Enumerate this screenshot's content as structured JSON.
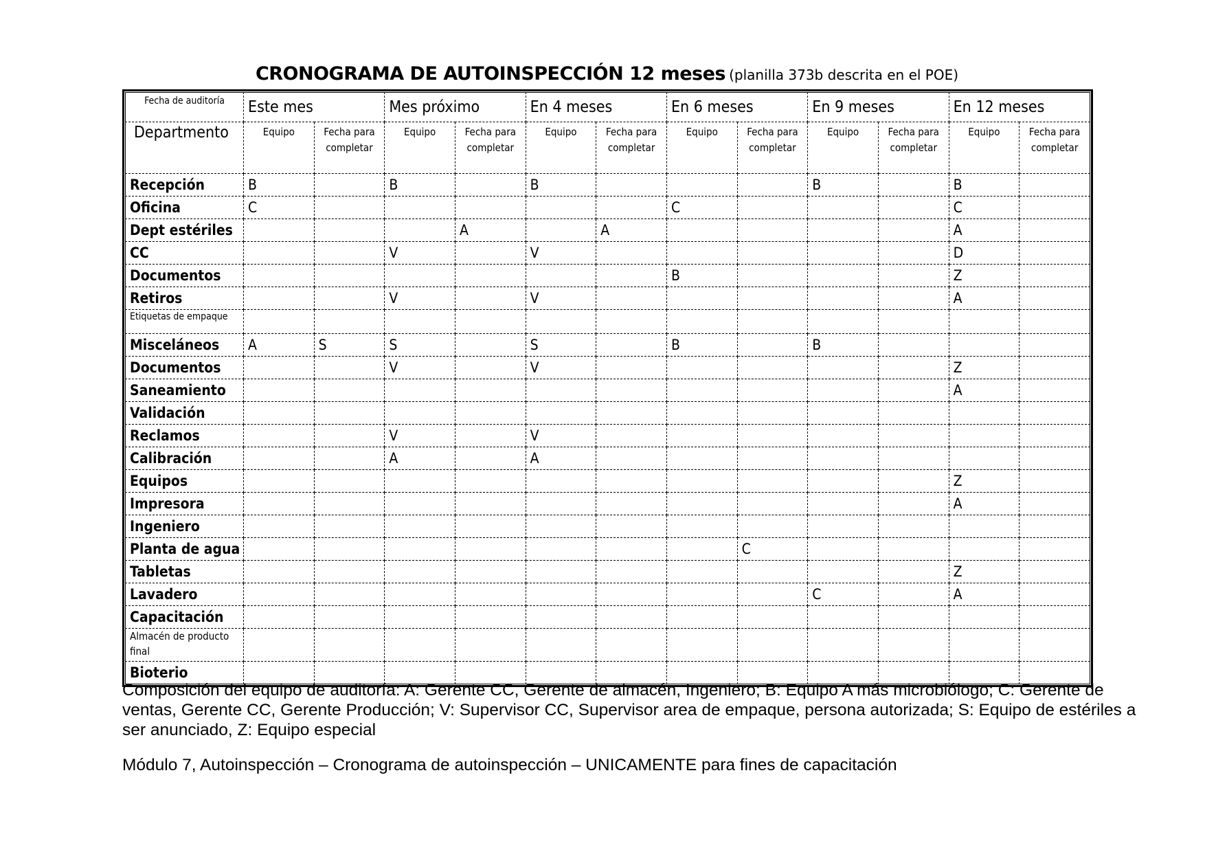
{
  "title": {
    "main": "CRONOGRAMA DE AUTOINSPECCIÓN 12 meses",
    "sub": "(planilla 373b descrita en el POE)"
  },
  "table": {
    "corner_label": "Fecha de auditoría",
    "dept_label": "Departmento",
    "periods": [
      "Este mes",
      "Mes próximo",
      "En 4 meses",
      "En 6 meses",
      "En 9 meses",
      "En 12 meses"
    ],
    "subheaders": [
      "Equipo",
      "Fecha para completar"
    ],
    "rows": [
      {
        "name": "Recepción",
        "cells": [
          "B",
          "",
          "B",
          "",
          "B",
          "",
          "",
          "",
          "B",
          "",
          "B",
          ""
        ]
      },
      {
        "name": "Oficina",
        "cells": [
          "C",
          "",
          "",
          "",
          "",
          "",
          "C",
          "",
          "",
          "",
          "C",
          ""
        ]
      },
      {
        "name": "Dept estériles",
        "cells": [
          "",
          "",
          "",
          "A",
          "",
          "A",
          "",
          "",
          "",
          "",
          "A",
          ""
        ]
      },
      {
        "name": "CC",
        "cells": [
          "",
          "",
          "V",
          "",
          "V",
          "",
          "",
          "",
          "",
          "",
          "D",
          ""
        ]
      },
      {
        "name": "Documentos",
        "cells": [
          "",
          "",
          "",
          "",
          "",
          "",
          "B",
          "",
          "",
          "",
          "Z",
          ""
        ]
      },
      {
        "name": "Retiros",
        "cells": [
          "",
          "",
          "V",
          "",
          "V",
          "",
          "",
          "",
          "",
          "",
          "A",
          ""
        ]
      },
      {
        "name": "Etiquetas de empaque",
        "style": "tiny",
        "cells": [
          "",
          "",
          "",
          "",
          "",
          "",
          "",
          "",
          "",
          "",
          "",
          ""
        ]
      },
      {
        "name": "Misceláneos",
        "cells": [
          "A",
          "S",
          "S",
          "",
          "S",
          "",
          "B",
          "",
          "B",
          "",
          "",
          ""
        ]
      },
      {
        "name": "Documentos",
        "cells": [
          "",
          "",
          "V",
          "",
          "V",
          "",
          "",
          "",
          "",
          "",
          "Z",
          ""
        ]
      },
      {
        "name": "Saneamiento",
        "cells": [
          "",
          "",
          "",
          "",
          "",
          "",
          "",
          "",
          "",
          "",
          "A",
          ""
        ]
      },
      {
        "name": "Validación",
        "cells": [
          "",
          "",
          "",
          "",
          "",
          "",
          "",
          "",
          "",
          "",
          "",
          ""
        ]
      },
      {
        "name": "Reclamos",
        "cells": [
          "",
          "",
          "V",
          "",
          "V",
          "",
          "",
          "",
          "",
          "",
          "",
          ""
        ]
      },
      {
        "name": "Calibración",
        "cells": [
          "",
          "",
          "A",
          "",
          "A",
          "",
          "",
          "",
          "",
          "",
          "",
          ""
        ]
      },
      {
        "name": "Equipos",
        "cells": [
          "",
          "",
          "",
          "",
          "",
          "",
          "",
          "",
          "",
          "",
          "Z",
          ""
        ]
      },
      {
        "name": "Impresora",
        "cells": [
          "",
          "",
          "",
          "",
          "",
          "",
          "",
          "",
          "",
          "",
          "A",
          ""
        ]
      },
      {
        "name": "Ingeniero",
        "cells": [
          "",
          "",
          "",
          "",
          "",
          "",
          "",
          "",
          "",
          "",
          "",
          ""
        ]
      },
      {
        "name": "Planta de agua",
        "cells": [
          "",
          "",
          "",
          "",
          "",
          "",
          "",
          "C",
          "",
          "",
          "",
          ""
        ]
      },
      {
        "name": "Tabletas",
        "cells": [
          "",
          "",
          "",
          "",
          "",
          "",
          "",
          "",
          "",
          "",
          "Z",
          ""
        ]
      },
      {
        "name": "Lavadero",
        "cells": [
          "",
          "",
          "",
          "",
          "",
          "",
          "",
          "",
          "C",
          "",
          "A",
          ""
        ]
      },
      {
        "name": "Capacitación",
        "cells": [
          "",
          "",
          "",
          "",
          "",
          "",
          "",
          "",
          "",
          "",
          "",
          ""
        ]
      },
      {
        "name": "Almacén de producto final",
        "style": "wrap",
        "cells": [
          "",
          "",
          "",
          "",
          "",
          "",
          "",
          "",
          "",
          "",
          "",
          ""
        ]
      },
      {
        "name": "Bioterio",
        "cells": [
          "",
          "",
          "",
          "",
          "",
          "",
          "",
          "",
          "",
          "",
          "",
          ""
        ]
      }
    ]
  },
  "legend": "Composición del equipo de auditoría: A: Gerente CC, Gerente de almacén, Ingeniero; B: Equipo A más microbiólogo; C: Gerente de ventas, Gerente CC, Gerente Producción; V: Supervisor CC, Supervisor area de empaque, persona autorizada; S: Equipo de estériles a ser anunciado, Z: Equipo especial",
  "footer": "Módulo 7, Autoinspección – Cronograma de autoinspección – UNICAMENTE para fines de capacitación"
}
